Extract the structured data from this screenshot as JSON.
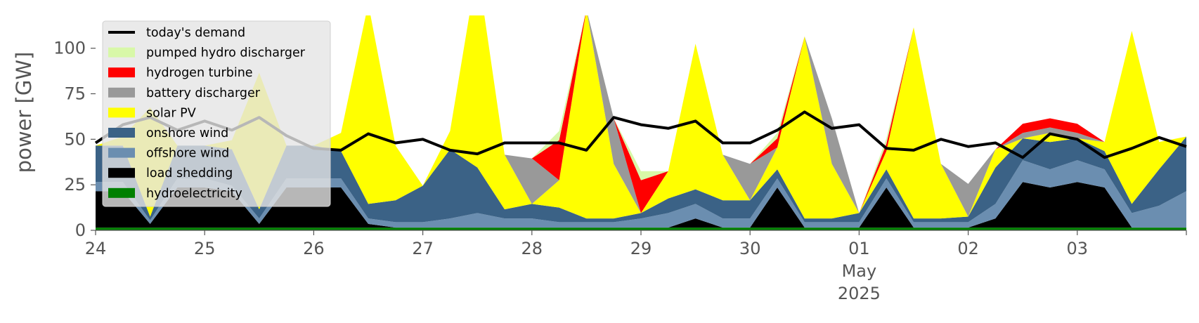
{
  "chart_data": {
    "type": "area",
    "title": "",
    "xlabel": "",
    "ylabel": "power [GW]",
    "ylim": [
      0,
      118
    ],
    "xlim": [
      "2025-04-24",
      "2025-05-03 24:00"
    ],
    "yticks": [
      0,
      25,
      50,
      75,
      100
    ],
    "xticks": [
      {
        "label": "24",
        "date": "2025-04-24"
      },
      {
        "label": "25",
        "date": "2025-04-25"
      },
      {
        "label": "26",
        "date": "2025-04-26"
      },
      {
        "label": "27",
        "date": "2025-04-27"
      },
      {
        "label": "28",
        "date": "2025-04-28"
      },
      {
        "label": "29",
        "date": "2025-04-29"
      },
      {
        "label": "30",
        "date": "2025-04-30"
      },
      {
        "label": "01",
        "date": "2025-05-01"
      },
      {
        "label": "02",
        "date": "2025-05-02"
      },
      {
        "label": "03",
        "date": "2025-05-03"
      }
    ],
    "month_label": "May",
    "year_label": "2025",
    "grid": false,
    "legend_position": "top-left",
    "x": [
      "2025-04-24 00:00",
      "2025-04-24 06:00",
      "2025-04-24 12:00",
      "2025-04-24 18:00",
      "2025-04-25 00:00",
      "2025-04-25 06:00",
      "2025-04-25 12:00",
      "2025-04-25 18:00",
      "2025-04-26 00:00",
      "2025-04-26 06:00",
      "2025-04-26 12:00",
      "2025-04-26 18:00",
      "2025-04-27 00:00",
      "2025-04-27 06:00",
      "2025-04-27 12:00",
      "2025-04-27 18:00",
      "2025-04-28 00:00",
      "2025-04-28 06:00",
      "2025-04-28 12:00",
      "2025-04-28 18:00",
      "2025-04-29 00:00",
      "2025-04-29 06:00",
      "2025-04-29 12:00",
      "2025-04-29 18:00",
      "2025-04-30 00:00",
      "2025-04-30 06:00",
      "2025-04-30 12:00",
      "2025-04-30 18:00",
      "2025-05-01 00:00",
      "2025-05-01 06:00",
      "2025-05-01 12:00",
      "2025-05-01 18:00",
      "2025-05-02 00:00",
      "2025-05-02 06:00",
      "2025-05-02 12:00",
      "2025-05-02 18:00",
      "2025-05-03 00:00",
      "2025-05-03 06:00",
      "2025-05-03 12:00",
      "2025-05-03 18:00",
      "2025-05-04 00:00"
    ],
    "series": [
      {
        "name": "hydroelectricity",
        "color": "#008000",
        "values": [
          1.5,
          1.5,
          1.5,
          1.5,
          1.5,
          1.5,
          1.5,
          1.5,
          1.5,
          1.5,
          1.5,
          1.5,
          1.5,
          1.5,
          1.5,
          1.5,
          1.5,
          1.5,
          1.5,
          1.5,
          1.5,
          1.5,
          1.5,
          1.5,
          1.5,
          1.5,
          1.5,
          1.5,
          1.5,
          1.5,
          1.5,
          1.5,
          1.5,
          1.5,
          1.5,
          1.5,
          1.5,
          1.5,
          1.5,
          1.5,
          1.5
        ]
      },
      {
        "name": "load shedding",
        "color": "#000000",
        "values": [
          20,
          20,
          2,
          22,
          22,
          20,
          2,
          22,
          22,
          22,
          2,
          0,
          0,
          0,
          0,
          0,
          0,
          0,
          0,
          0,
          0,
          0,
          5,
          0,
          0,
          22,
          0,
          0,
          0,
          22,
          0,
          0,
          0,
          5,
          25,
          22,
          25,
          22,
          0,
          0,
          0
        ]
      },
      {
        "name": "offshore wind",
        "color": "#6b8eb0",
        "values": [
          5,
          5,
          2,
          5,
          5,
          3,
          3,
          5,
          5,
          5,
          3,
          3,
          3,
          5,
          8,
          5,
          5,
          3,
          3,
          3,
          5,
          8,
          8,
          5,
          5,
          5,
          3,
          3,
          3,
          5,
          3,
          3,
          3,
          8,
          12,
          10,
          12,
          10,
          8,
          12,
          20
        ]
      },
      {
        "name": "onshore wind",
        "color": "#3b6286",
        "values": [
          20,
          20,
          2,
          18,
          18,
          20,
          5,
          18,
          18,
          15,
          8,
          12,
          20,
          38,
          25,
          5,
          8,
          8,
          2,
          2,
          3,
          8,
          8,
          10,
          10,
          5,
          2,
          2,
          5,
          5,
          2,
          2,
          3,
          20,
          12,
          15,
          12,
          10,
          5,
          20,
          30
        ]
      },
      {
        "name": "solar PV",
        "color": "#ffff00",
        "values": [
          0,
          5,
          60,
          0,
          0,
          5,
          75,
          0,
          0,
          10,
          110,
          30,
          0,
          10,
          110,
          30,
          0,
          15,
          115,
          30,
          0,
          15,
          80,
          25,
          0,
          12,
          100,
          30,
          0,
          10,
          105,
          30,
          0,
          10,
          0,
          5,
          0,
          5,
          95,
          15,
          0
        ]
      },
      {
        "name": "battery discharger",
        "color": "#999999",
        "values": [
          0,
          0,
          0,
          0,
          0,
          0,
          0,
          0,
          0,
          0,
          0,
          0,
          0,
          0,
          0,
          0,
          25,
          0,
          0,
          25,
          0,
          0,
          0,
          0,
          20,
          0,
          0,
          25,
          0,
          0,
          0,
          0,
          18,
          0,
          3,
          3,
          3,
          0,
          0,
          0,
          0
        ]
      },
      {
        "name": "hydrogen turbine",
        "color": "#ff0000",
        "values": [
          0,
          0,
          0,
          0,
          0,
          0,
          0,
          0,
          0,
          0,
          0,
          0,
          0,
          0,
          0,
          0,
          0,
          22,
          0,
          0,
          18,
          0,
          0,
          0,
          0,
          5,
          0,
          0,
          0,
          4,
          0,
          0,
          0,
          0,
          5,
          5,
          5,
          0,
          0,
          0,
          0
        ]
      },
      {
        "name": "pumped hydro discharger",
        "color": "#d8f8a8",
        "values": [
          0,
          0,
          0,
          0,
          0,
          0,
          0,
          0,
          0,
          0,
          0,
          0,
          0,
          0,
          0,
          0,
          0,
          5,
          0,
          0,
          5,
          0,
          0,
          0,
          0,
          3,
          0,
          0,
          0,
          3,
          0,
          0,
          0,
          0,
          0,
          0,
          0,
          0,
          0,
          0,
          0
        ]
      }
    ],
    "demand": {
      "name": "today's demand",
      "color": "#000000",
      "values": [
        48,
        58,
        62,
        55,
        60,
        55,
        62,
        52,
        45,
        44,
        53,
        48,
        50,
        44,
        42,
        48,
        48,
        48,
        44,
        62,
        58,
        56,
        60,
        48,
        48,
        55,
        65,
        56,
        58,
        45,
        44,
        50,
        46,
        48,
        40,
        53,
        50,
        40,
        45,
        51,
        46
      ]
    },
    "legend": [
      "today's demand",
      "pumped hydro discharger",
      "hydrogen turbine",
      "battery discharger",
      "solar PV",
      "onshore wind",
      "offshore wind",
      "load shedding",
      "hydroelectricity"
    ]
  }
}
